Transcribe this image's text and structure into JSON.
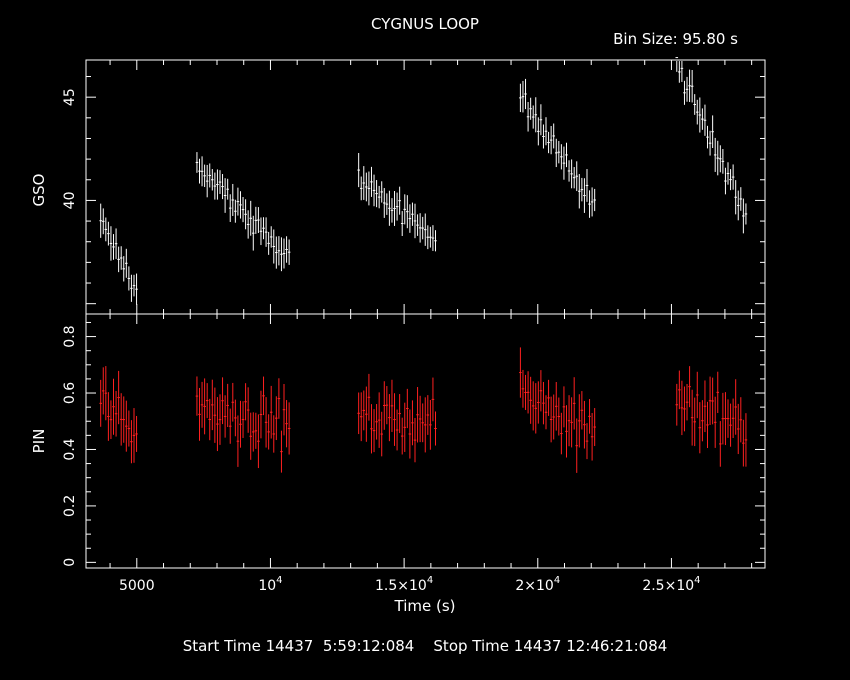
{
  "chart_data": {
    "type": "scatter",
    "title": "CYGNUS LOOP",
    "bin_size_label": "Bin Size: 95.80 s",
    "xlabel": "Time (s)",
    "footer_text": "Start Time 14437  5:59:12:084    Stop Time 14437 12:46:21:084",
    "xlim": [
      3100,
      28500
    ],
    "x_ticks": [
      {
        "value": 5000,
        "label": "5000"
      },
      {
        "value": 10000,
        "label": "10",
        "exp": "4"
      },
      {
        "value": 15000,
        "label": "1.5×10",
        "exp": "4"
      },
      {
        "value": 20000,
        "label": "2×10",
        "exp": "4"
      },
      {
        "value": 25000,
        "label": "2.5×10",
        "exp": "4"
      }
    ],
    "panels": [
      {
        "name": "GSO",
        "ylabel": "GSO",
        "color": "#ffffff",
        "ylim": [
          34.5,
          46.8
        ],
        "y_ticks": [
          {
            "value": 40,
            "label": "40"
          },
          {
            "value": 45,
            "label": "45"
          }
        ],
        "segments": [
          {
            "x_start": 3650,
            "x_end": 4950,
            "y_start": 39.2,
            "y_end": 35.6
          },
          {
            "x_start": 7250,
            "x_end": 10700,
            "y_start": 41.6,
            "y_end": 37.2
          },
          {
            "x_start": 13300,
            "x_end": 16200,
            "y_start": 41.1,
            "y_end": 38.2
          },
          {
            "x_start": 19350,
            "x_end": 22100,
            "y_start": 45.0,
            "y_end": 39.7
          },
          {
            "x_start": 25200,
            "x_end": 27800,
            "y_start": 46.6,
            "y_end": 39.2
          }
        ]
      },
      {
        "name": "PIN",
        "ylabel": "PIN",
        "color": "#ff2020",
        "ylim": [
          -0.02,
          0.88
        ],
        "y_ticks": [
          {
            "value": 0,
            "label": "0"
          },
          {
            "value": 0.2,
            "label": "0.2"
          },
          {
            "value": 0.4,
            "label": "0.4"
          },
          {
            "value": 0.6,
            "label": "0.6"
          },
          {
            "value": 0.8,
            "label": "0.8"
          }
        ],
        "segments": [
          {
            "x_start": 3650,
            "x_end": 4950,
            "y_start": 0.57,
            "y_end": 0.47
          },
          {
            "x_start": 7250,
            "x_end": 10700,
            "y_start": 0.56,
            "y_end": 0.48
          },
          {
            "x_start": 13300,
            "x_end": 16200,
            "y_start": 0.52,
            "y_end": 0.5
          },
          {
            "x_start": 19350,
            "x_end": 22100,
            "y_start": 0.6,
            "y_end": 0.48
          },
          {
            "x_start": 25200,
            "x_end": 27800,
            "y_start": 0.58,
            "y_end": 0.47
          }
        ]
      }
    ]
  }
}
